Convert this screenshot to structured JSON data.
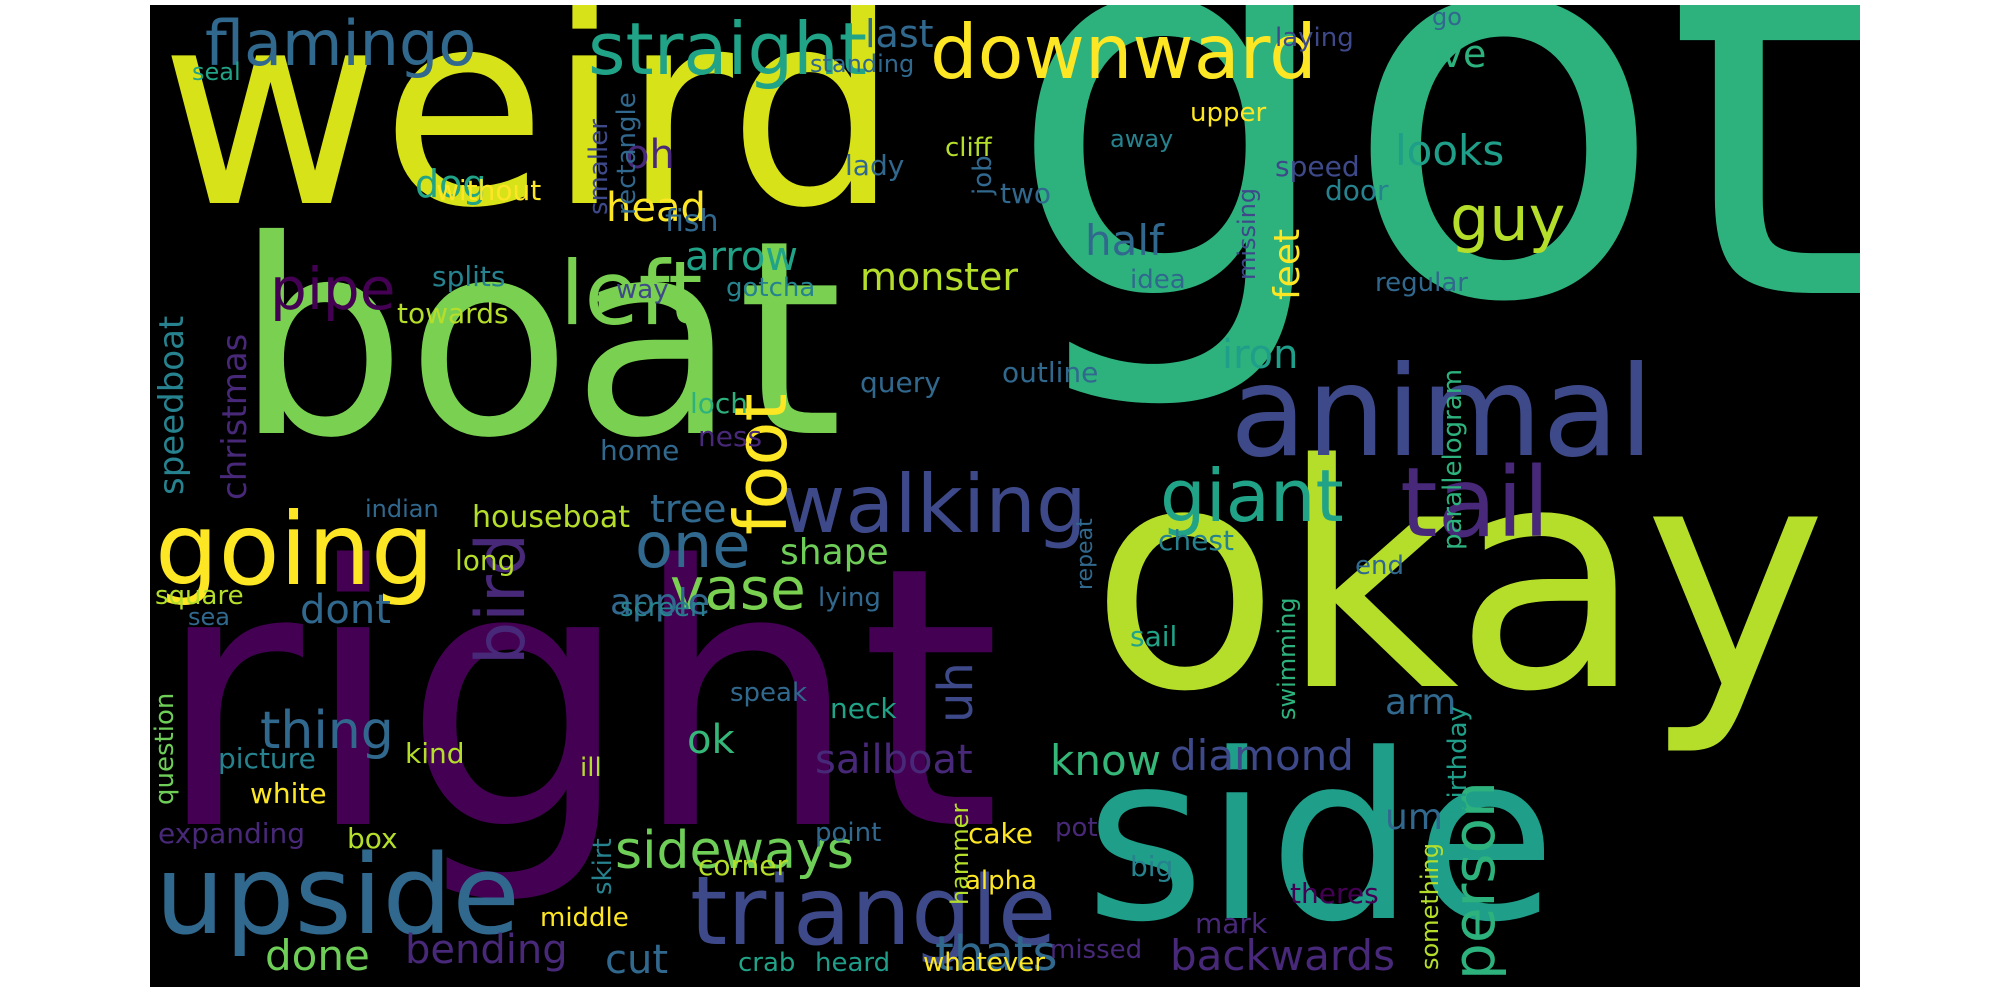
{
  "palette": {
    "background": "#000000",
    "deep_purple": "#440154",
    "purple": "#482878",
    "indigo": "#3e4989",
    "blue": "#31688e",
    "teal_blue": "#26828e",
    "teal": "#1f9e89",
    "green": "#35b779",
    "light_green": "#6ece58",
    "lime": "#b5de2b",
    "yellow": "#fde725"
  },
  "words": [
    "weird",
    "got",
    "boat",
    "right",
    "okay",
    "side",
    "animal",
    "upside",
    "triangle",
    "going",
    "walking",
    "left",
    "downward",
    "straight",
    "flamingo",
    "giant",
    "tail",
    "foot",
    "pipe",
    "bird",
    "one",
    "person",
    "guy",
    "vase",
    "thing",
    "sideways",
    "half",
    "looks",
    "head",
    "iron",
    "arrow",
    "monster",
    "dog",
    "oh",
    "last",
    "ive",
    "sailboat",
    "diamond",
    "know",
    "cut",
    "done",
    "bending",
    "thats",
    "backwards",
    "apple",
    "dont",
    "ok",
    "shape",
    "tree",
    "uh",
    "arm",
    "um",
    "feet",
    "speedboat",
    "christmas",
    "fish",
    "splits",
    "towards",
    "without",
    "smaller",
    "rectangle",
    "lady",
    "two",
    "speed",
    "door",
    "cliff",
    "upper",
    "laying",
    "standing",
    "seal",
    "go",
    "away",
    "job",
    "gotcha",
    "way",
    "idea",
    "regular",
    "missing",
    "query",
    "outline",
    "loch",
    "ness",
    "home",
    "indian",
    "houseboat",
    "long",
    "square",
    "sea",
    "screen",
    "lying",
    "chest",
    "end",
    "repeat",
    "parallelogram",
    "sail",
    "swimming",
    "birthday",
    "something",
    "question",
    "picture",
    "kind",
    "white",
    "ill",
    "speak",
    "neck",
    "hammer",
    "skirt",
    "expanding",
    "box",
    "point",
    "cake",
    "pot",
    "big",
    "alpha",
    "corner",
    "theres",
    "mark",
    "middle",
    "crab",
    "heard",
    "whatever",
    "missed"
  ]
}
